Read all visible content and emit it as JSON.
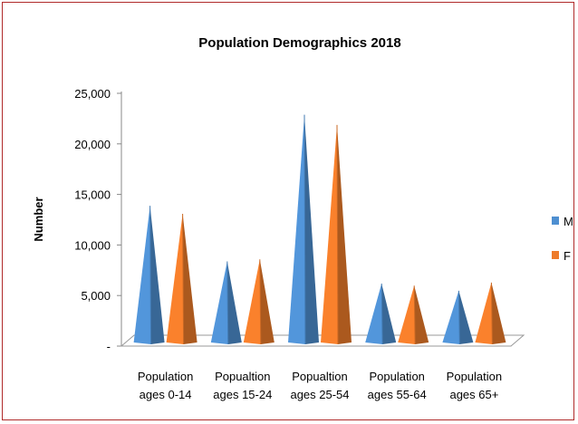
{
  "chart_data": {
    "type": "bar",
    "title": "Population Demographics 2018",
    "ylabel": "Number",
    "xlabel": "",
    "ylim": [
      0,
      25000
    ],
    "yticks": [
      "-",
      "5,000",
      "10,000",
      "15,000",
      "20,000",
      "25,000"
    ],
    "categories": [
      [
        "Population",
        "ages 0-14"
      ],
      [
        "Popualtion",
        "ages 15-24"
      ],
      [
        "Popualtion",
        "ages 25-54"
      ],
      [
        "Population",
        "ages 55-64"
      ],
      [
        "Population",
        "ages 65+"
      ]
    ],
    "series": [
      {
        "name": "M",
        "color": "#4e8fd1",
        "values": [
          13700,
          8200,
          22700,
          6000,
          5300
        ]
      },
      {
        "name": "F",
        "color": "#ee7b2a",
        "values": [
          12900,
          8400,
          21700,
          5800,
          6100
        ]
      }
    ],
    "legend": "right",
    "grid": false
  }
}
